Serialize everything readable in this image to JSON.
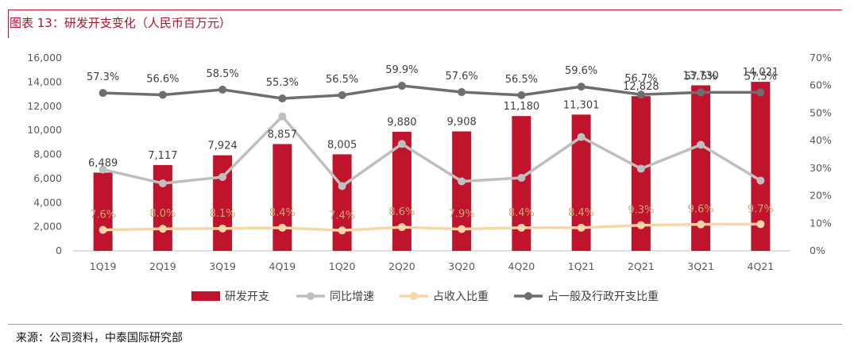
{
  "header": {
    "title": "图表 13：研发开支变化（人民币百万元）"
  },
  "footer": {
    "source": "来源：公司资料，中泰国际研究部"
  },
  "chart_data": {
    "type": "bar",
    "categories": [
      "1Q19",
      "2Q19",
      "3Q19",
      "4Q19",
      "1Q20",
      "2Q20",
      "3Q20",
      "4Q20",
      "1Q21",
      "2Q21",
      "3Q21",
      "4Q21"
    ],
    "y_left": {
      "ylim": [
        0,
        16000
      ],
      "ticks": [
        "0",
        "2,000",
        "4,000",
        "6,000",
        "8,000",
        "10,000",
        "12,000",
        "14,000",
        "16,000"
      ]
    },
    "y_right": {
      "ylim": [
        0,
        70
      ],
      "ticks": [
        "0%",
        "10%",
        "20%",
        "30%",
        "40%",
        "50%",
        "60%",
        "70%"
      ]
    },
    "legend_position": "bottom",
    "grid": false,
    "series": [
      {
        "name": "研发开支",
        "kind": "bar",
        "axis": "left",
        "color": "#c0142d",
        "values": [
          6489,
          7117,
          7924,
          8857,
          8005,
          9880,
          9908,
          11180,
          11301,
          12828,
          13730,
          14021
        ],
        "labels": [
          "6,489",
          "7,117",
          "7,924",
          "8,857",
          "8,005",
          "9,880",
          "9,908",
          "11,180",
          "11,301",
          "12,828",
          "13,730",
          "14,021"
        ]
      },
      {
        "name": "同比增速",
        "kind": "line",
        "axis": "right",
        "color": "#bfbfbf",
        "values": [
          29.5,
          24.5,
          26.8,
          48.8,
          23.5,
          38.8,
          25.2,
          26.5,
          41.3,
          29.8,
          38.5,
          25.5
        ]
      },
      {
        "name": "占收入比重",
        "kind": "line",
        "axis": "right",
        "color": "#f7d7a8",
        "values": [
          7.6,
          8.0,
          8.1,
          8.4,
          7.4,
          8.6,
          7.9,
          8.4,
          8.4,
          9.3,
          9.6,
          9.7
        ],
        "labels": [
          "7.6%",
          "8.0%",
          "8.1%",
          "8.4%",
          "7.4%",
          "8.6%",
          "7.9%",
          "8.4%",
          "8.4%",
          "9.3%",
          "9.6%",
          "9.7%"
        ]
      },
      {
        "name": "占一般及行政开支比重",
        "kind": "line",
        "axis": "right",
        "color": "#6e6e6e",
        "values": [
          57.3,
          56.6,
          58.5,
          55.3,
          56.5,
          59.9,
          57.6,
          56.5,
          59.6,
          56.7,
          57.5,
          57.5
        ],
        "labels": [
          "57.3%",
          "56.6%",
          "58.5%",
          "55.3%",
          "56.5%",
          "59.9%",
          "57.6%",
          "56.5%",
          "59.6%",
          "56.7%",
          "57.5%",
          "57.5%"
        ]
      }
    ]
  }
}
